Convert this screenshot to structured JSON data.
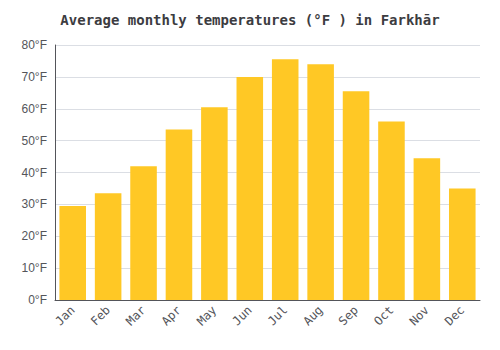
{
  "chart_data": {
    "type": "bar",
    "title": "Average monthly temperatures (°F ) in Farkhār",
    "categories": [
      "Jan",
      "Feb",
      "Mar",
      "Apr",
      "May",
      "Jun",
      "Jul",
      "Aug",
      "Sep",
      "Oct",
      "Nov",
      "Dec"
    ],
    "values": [
      29.5,
      33.5,
      42.0,
      53.5,
      60.5,
      70.0,
      75.5,
      74.0,
      65.5,
      56.0,
      44.5,
      35.0
    ],
    "color": "#FFC825",
    "ylim": [
      0,
      80
    ],
    "yticks": [
      {
        "value": 0,
        "label": "0°F"
      },
      {
        "value": 10,
        "label": "10°F"
      },
      {
        "value": 20,
        "label": "20°F"
      },
      {
        "value": 30,
        "label": "30°F"
      },
      {
        "value": 40,
        "label": "40°F"
      },
      {
        "value": 50,
        "label": "50°F"
      },
      {
        "value": 60,
        "label": "60°F"
      },
      {
        "value": 70,
        "label": "70°F"
      },
      {
        "value": 80,
        "label": "80°F"
      }
    ],
    "grid": true
  }
}
